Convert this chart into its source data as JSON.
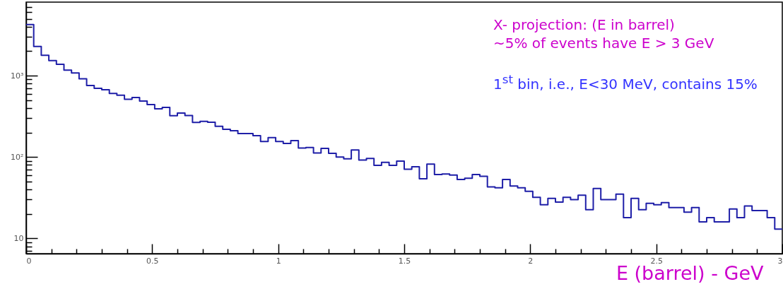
{
  "chart_data": {
    "type": "histogram",
    "xlabel": "E (barrel) - GeV",
    "color": "#1f1fa8",
    "log": "y",
    "annotations": [
      "X- projection: (E in barrel)",
      "~5% of events have E > 3 GeV",
      "1$^{st}$ bin, i.e., E<30 MeV, contains 15%"
    ],
    "bins": [
      0,
      0.03,
      0.06,
      0.09,
      0.12,
      0.15,
      0.18,
      0.21,
      0.24,
      0.27,
      0.3,
      0.33,
      0.36,
      0.39,
      0.42,
      0.45,
      0.48,
      0.51,
      0.54,
      0.57,
      0.6,
      0.63,
      0.66,
      0.69,
      0.72,
      0.75,
      0.78,
      0.81,
      0.84,
      0.87,
      0.9,
      0.93,
      0.96,
      0.99,
      1.02,
      1.05,
      1.08,
      1.11,
      1.14,
      1.17,
      1.2,
      1.23,
      1.26,
      1.29,
      1.32,
      1.35,
      1.38,
      1.41,
      1.44,
      1.47,
      1.5,
      1.53,
      1.56,
      1.59,
      1.62,
      1.65,
      1.68,
      1.71,
      1.74,
      1.77,
      1.8,
      1.83,
      1.86,
      1.89,
      1.92,
      1.95,
      1.98,
      2.01,
      2.04,
      2.07,
      2.1,
      2.13,
      2.16,
      2.19,
      2.22,
      2.25,
      2.28,
      2.31,
      2.34,
      2.37,
      2.4,
      2.43,
      2.46,
      2.49,
      2.52,
      2.55,
      2.58,
      2.61,
      2.64,
      2.67,
      2.7,
      2.73,
      2.76,
      2.79,
      2.82,
      2.85,
      2.88,
      2.91,
      2.94,
      2.97,
      3
    ],
    "values": [
      4240,
      2280,
      1780,
      1530,
      1380,
      1170,
      1080,
      915,
      757,
      699,
      671,
      603,
      575,
      513,
      538,
      487,
      441,
      391,
      407,
      322,
      347,
      324,
      266,
      275,
      268,
      238,
      219,
      211,
      194,
      194,
      183,
      155,
      173,
      155,
      147,
      159,
      129,
      131,
      112,
      128,
      111,
      100,
      95,
      122,
      92,
      96,
      79,
      86,
      79,
      89,
      71,
      76,
      54,
      82,
      61,
      62,
      60,
      53,
      55,
      61,
      58,
      43,
      42,
      53,
      44,
      42,
      38,
      32,
      26,
      31,
      28,
      32,
      30,
      34,
      22.5,
      41,
      30,
      30,
      35,
      18,
      31,
      22.5,
      27,
      26,
      27.5,
      24,
      24,
      21,
      24,
      16,
      18,
      16,
      16,
      23,
      18,
      25,
      22,
      22,
      18,
      13
    ],
    "xlim": [
      0,
      3
    ],
    "xticks": [
      0,
      {
        "value": 0.1,
        "label": null
      },
      {
        "value": 0.2,
        "label": null
      },
      {
        "value": 0.3,
        "label": null
      },
      {
        "value": 0.4,
        "label": null
      },
      0.5,
      {
        "value": 0.6,
        "label": null
      },
      {
        "value": 0.7,
        "label": null
      },
      {
        "value": 0.8,
        "label": null
      },
      {
        "value": 0.9,
        "label": null
      },
      1,
      {
        "value": 1.1,
        "label": null
      },
      {
        "value": 1.2,
        "label": null
      },
      {
        "value": 1.3,
        "label": null
      },
      {
        "value": 1.4,
        "label": null
      },
      1.5,
      {
        "value": 1.6,
        "label": null
      },
      {
        "value": 1.7,
        "label": null
      },
      {
        "value": 1.8,
        "label": null
      },
      {
        "value": 1.9,
        "label": null
      },
      2,
      {
        "value": 2.1,
        "label": null
      },
      {
        "value": 2.2,
        "label": null
      },
      {
        "value": 2.3,
        "label": null
      },
      {
        "value": 2.4,
        "label": null
      },
      2.5,
      {
        "value": 2.6,
        "label": null
      },
      {
        "value": 2.7,
        "label": null
      },
      {
        "value": 2.8,
        "label": null
      },
      {
        "value": 2.9,
        "label": null
      },
      3
    ],
    "ylim": [
      6.5,
      8000
    ],
    "yticks": [
      {
        "value": 7,
        "label": null
      },
      {
        "value": 8,
        "label": null
      },
      {
        "value": 9,
        "label": null
      },
      10,
      {
        "value": 20,
        "label": null
      },
      {
        "value": 30,
        "label": null
      },
      {
        "value": 40,
        "label": null
      },
      {
        "value": 50,
        "label": null
      },
      {
        "value": 60,
        "label": null
      },
      {
        "value": 70,
        "label": null
      },
      {
        "value": 80,
        "label": null
      },
      {
        "value": 90,
        "label": null
      },
      {
        "value": 100,
        "label": "10²"
      },
      {
        "value": 200,
        "label": null
      },
      {
        "value": 300,
        "label": null
      },
      {
        "value": 400,
        "label": null
      },
      {
        "value": 500,
        "label": null
      },
      {
        "value": 600,
        "label": null
      },
      {
        "value": 700,
        "label": null
      },
      {
        "value": 800,
        "label": null
      },
      {
        "value": 900,
        "label": null
      },
      {
        "value": 1000,
        "label": "10³"
      },
      {
        "value": 2000,
        "label": null
      },
      {
        "value": 3000,
        "label": null
      },
      {
        "value": 4000,
        "label": null
      },
      {
        "value": 5000,
        "label": null
      },
      {
        "value": 6000,
        "label": null
      },
      {
        "value": 7000,
        "label": null
      }
    ]
  }
}
